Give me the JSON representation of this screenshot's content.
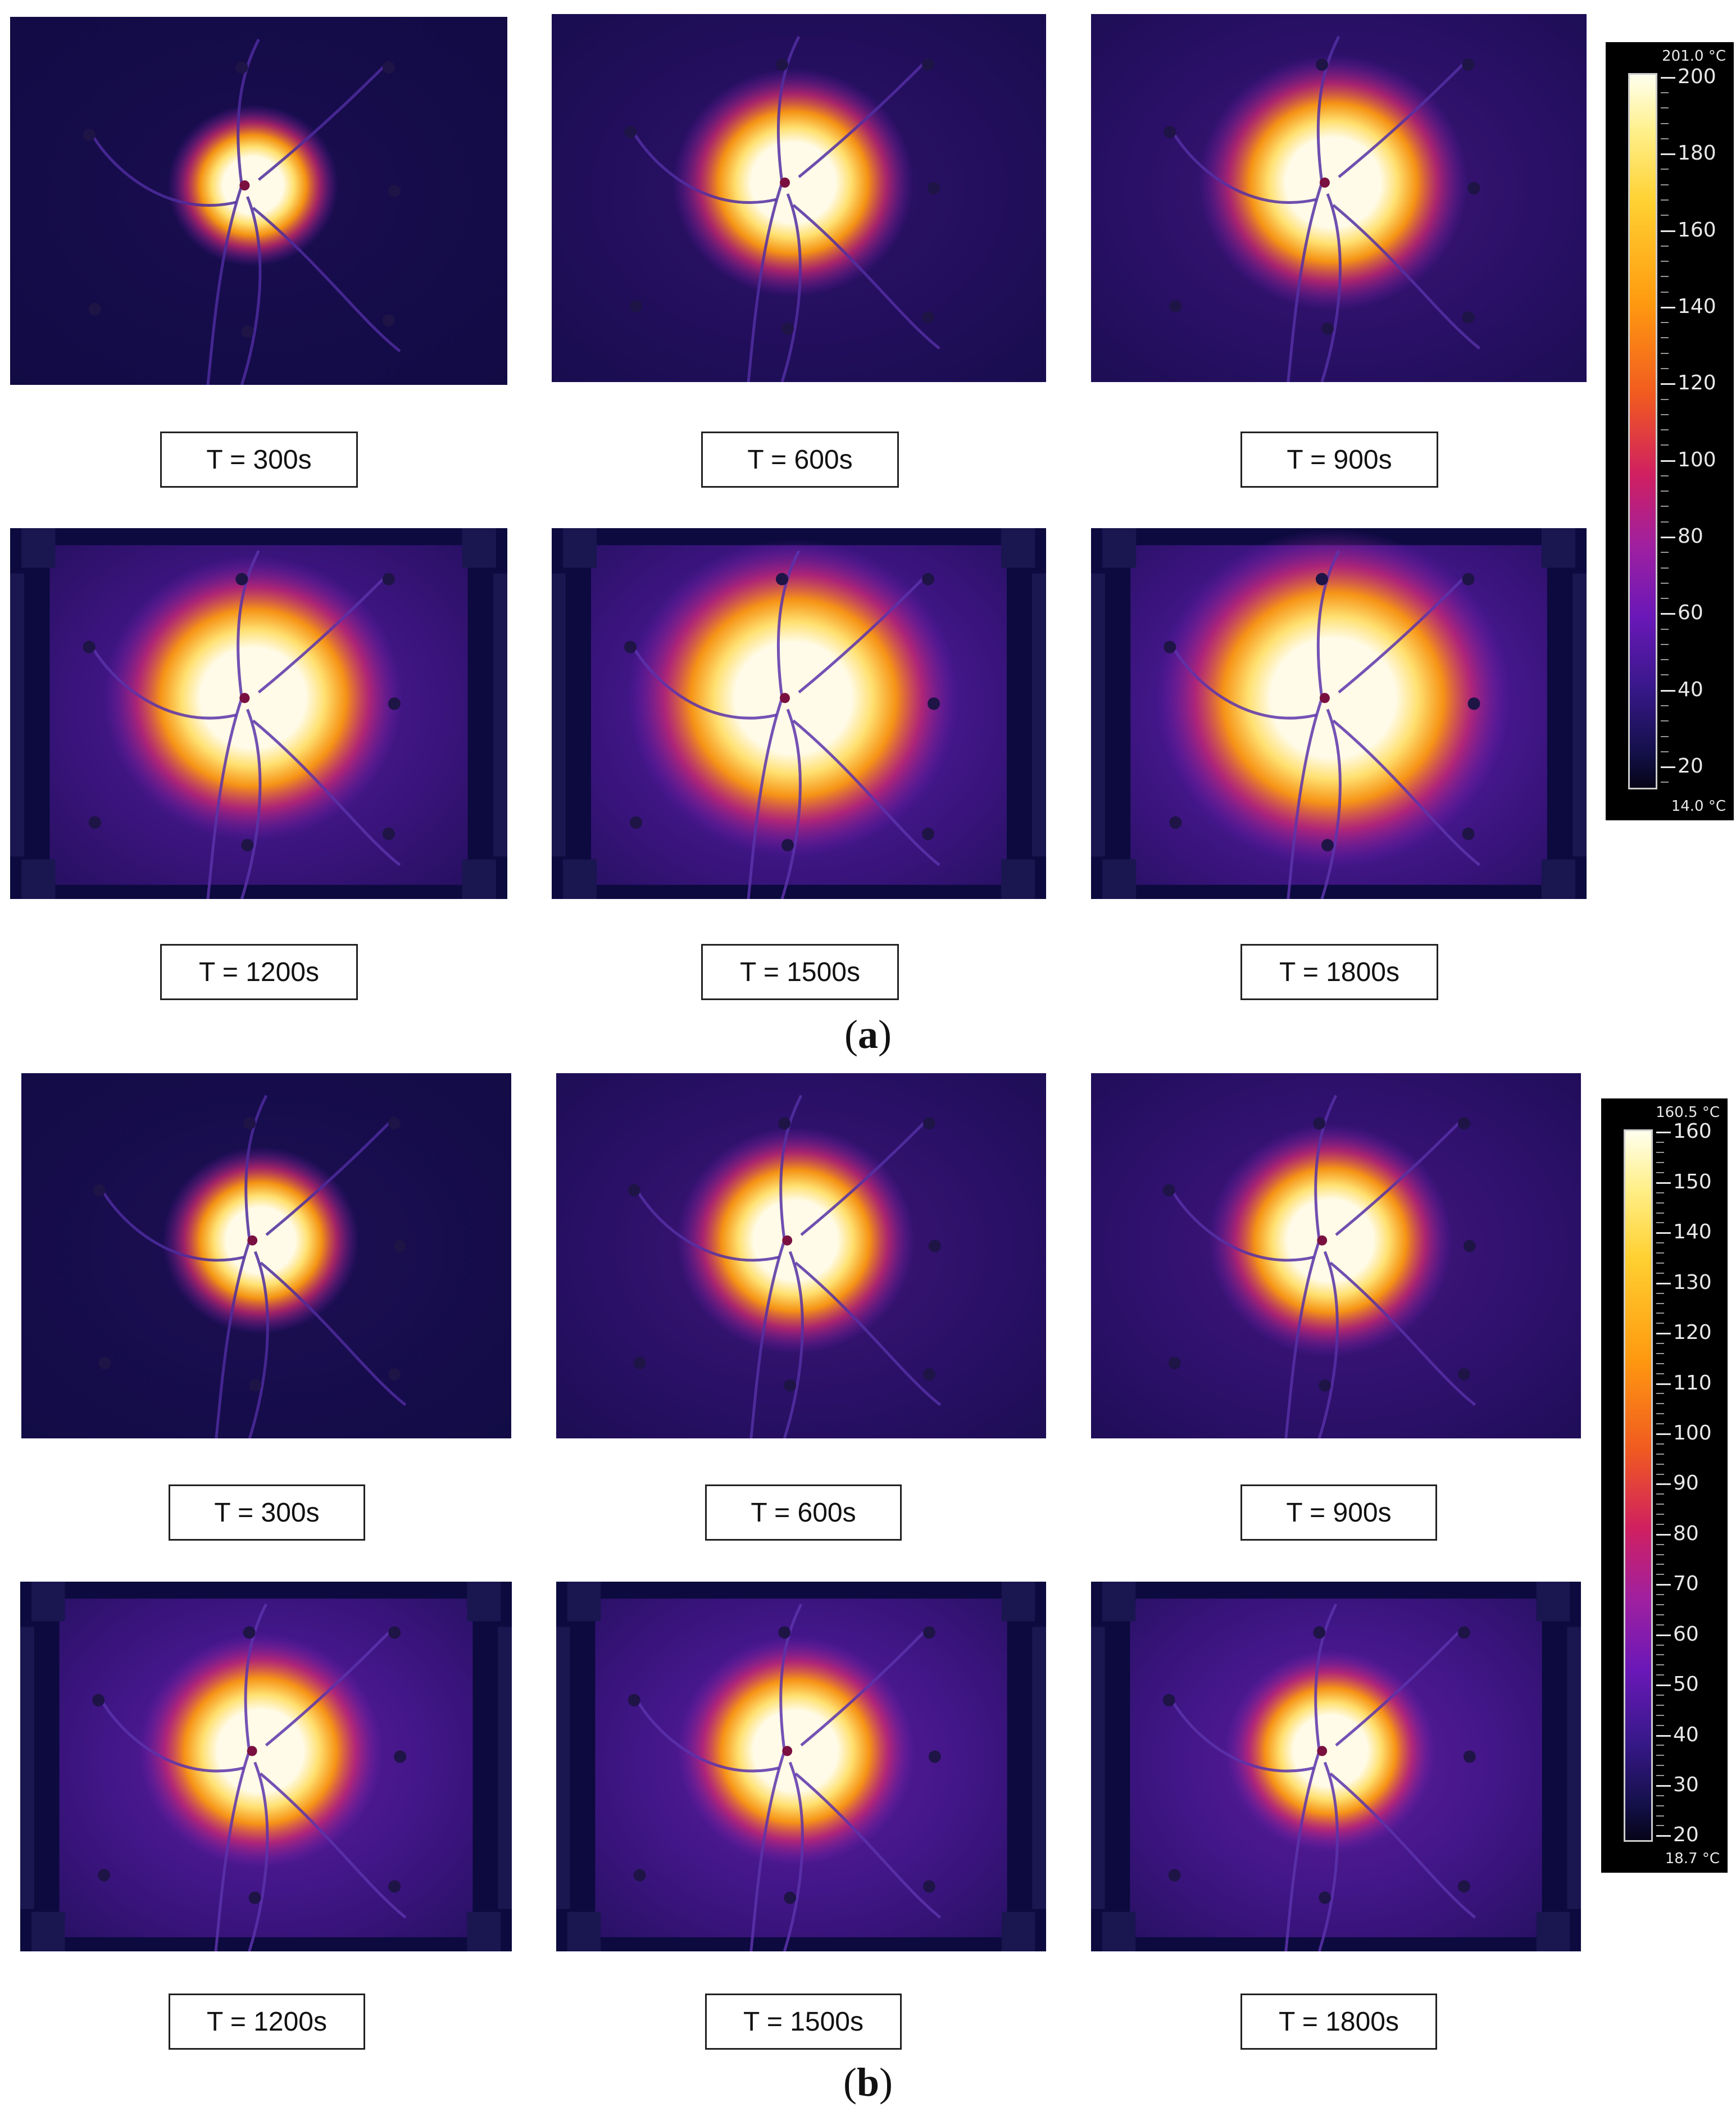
{
  "panel_a": {
    "caption_letter": "a",
    "images": [
      {
        "label": "T = 300s",
        "hot_spot_strength": 0.35,
        "plate_warmth": 0.1,
        "frame_shown": false
      },
      {
        "label": "T = 600s",
        "hot_spot_strength": 0.6,
        "plate_warmth": 0.25,
        "frame_shown": false
      },
      {
        "label": "T = 900s",
        "hot_spot_strength": 0.7,
        "plate_warmth": 0.35,
        "frame_shown": false
      },
      {
        "label": "T = 1200s",
        "hot_spot_strength": 0.8,
        "plate_warmth": 0.5,
        "frame_shown": true
      },
      {
        "label": "T = 1500s",
        "hot_spot_strength": 0.92,
        "plate_warmth": 0.55,
        "frame_shown": true
      },
      {
        "label": "T = 1800s",
        "hot_spot_strength": 1.0,
        "plate_warmth": 0.6,
        "frame_shown": true
      }
    ],
    "colorbar": {
      "max_text": "201.0 °C",
      "min_text": "14.0 °C",
      "min": 14.0,
      "max": 201.0,
      "ticks": [
        "200",
        "180",
        "160",
        "140",
        "120",
        "100",
        "80",
        "60",
        "40",
        "20"
      ]
    }
  },
  "panel_b": {
    "caption_letter": "b",
    "images": [
      {
        "label": "T = 300s",
        "hot_spot_strength": 0.45,
        "plate_warmth": 0.12,
        "frame_shown": false
      },
      {
        "label": "T = 600s",
        "hot_spot_strength": 0.6,
        "plate_warmth": 0.35,
        "frame_shown": false
      },
      {
        "label": "T = 900s",
        "hot_spot_strength": 0.62,
        "plate_warmth": 0.4,
        "frame_shown": false
      },
      {
        "label": "T = 1200s",
        "hot_spot_strength": 0.62,
        "plate_warmth": 0.55,
        "frame_shown": true
      },
      {
        "label": "T = 1500s",
        "hot_spot_strength": 0.6,
        "plate_warmth": 0.55,
        "frame_shown": true
      },
      {
        "label": "T = 1800s",
        "hot_spot_strength": 0.5,
        "plate_warmth": 0.55,
        "frame_shown": true
      }
    ],
    "colorbar": {
      "max_text": "160.5 °C",
      "min_text": "18.7 °C",
      "min": 18.7,
      "max": 160.5,
      "ticks": [
        "160",
        "150",
        "140",
        "130",
        "120",
        "110",
        "100",
        "90",
        "80",
        "70",
        "60",
        "50",
        "40",
        "30",
        "20"
      ]
    }
  },
  "colors": {
    "cold": "#0c0a3e",
    "warm_plate": "#6f1fc4",
    "hot_edge": "#ff9a10",
    "hot_core": "#fffbe8"
  }
}
